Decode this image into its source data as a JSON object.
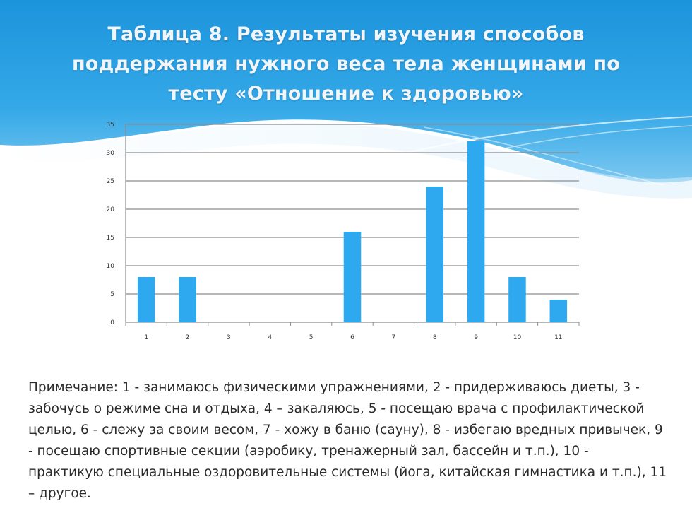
{
  "slide": {
    "title": "Таблица 8. Результаты изучения способов поддержания нужного веса тела женщинами по тесту «Отношение к здоровью»",
    "note": "Примечание: 1 - занимаюсь физическими упражнениями, 2 - придерживаюсь диеты, 3 - забочусь о режиме сна и отдыха, 4 – закаляюсь, 5 - посещаю врача с профилактической целью, 6 - слежу за своим весом, 7 - хожу в баню (сауну), 8 - избегаю вредных привычек, 9 - посещаю спортивные секции (аэробику, тренажерный зал, бассейн и т.п.), 10 - практикую специальные оздоровительные системы (йога, китайская гимнастика и т.п.), 11 – другое.",
    "colors": {
      "header": "#1e9be0",
      "header_dark": "#0c79c4",
      "bar": "#2ea8ee",
      "grid": "#8c8c8c"
    }
  },
  "chart_data": {
    "type": "bar",
    "title": "",
    "xlabel": "",
    "ylabel": "",
    "categories": [
      "1",
      "2",
      "3",
      "4",
      "5",
      "6",
      "7",
      "8",
      "9",
      "10",
      "11"
    ],
    "values": [
      8,
      8,
      0,
      0,
      0,
      16,
      0,
      24,
      32,
      8,
      4
    ],
    "ylim": [
      0,
      35
    ],
    "yticks": [
      "0",
      "5",
      "10",
      "15",
      "20",
      "25",
      "30",
      "35"
    ],
    "grid": true,
    "legend": "none"
  }
}
